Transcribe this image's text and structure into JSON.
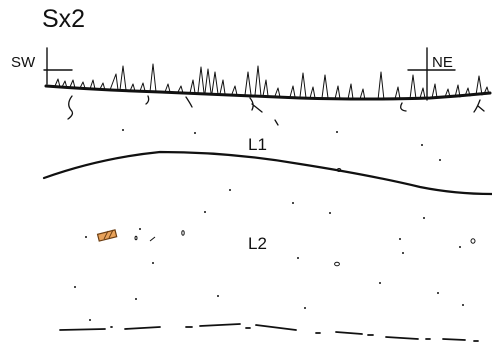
{
  "section": {
    "title": "Sx2"
  },
  "orientation": {
    "left": "SW",
    "right": "NE"
  },
  "layers": [
    {
      "label": "L1"
    },
    {
      "label": "L2"
    }
  ],
  "colors": {
    "ink": "#111111",
    "find_fill": "#e8a25a",
    "find_stroke": "#6b3d12"
  }
}
